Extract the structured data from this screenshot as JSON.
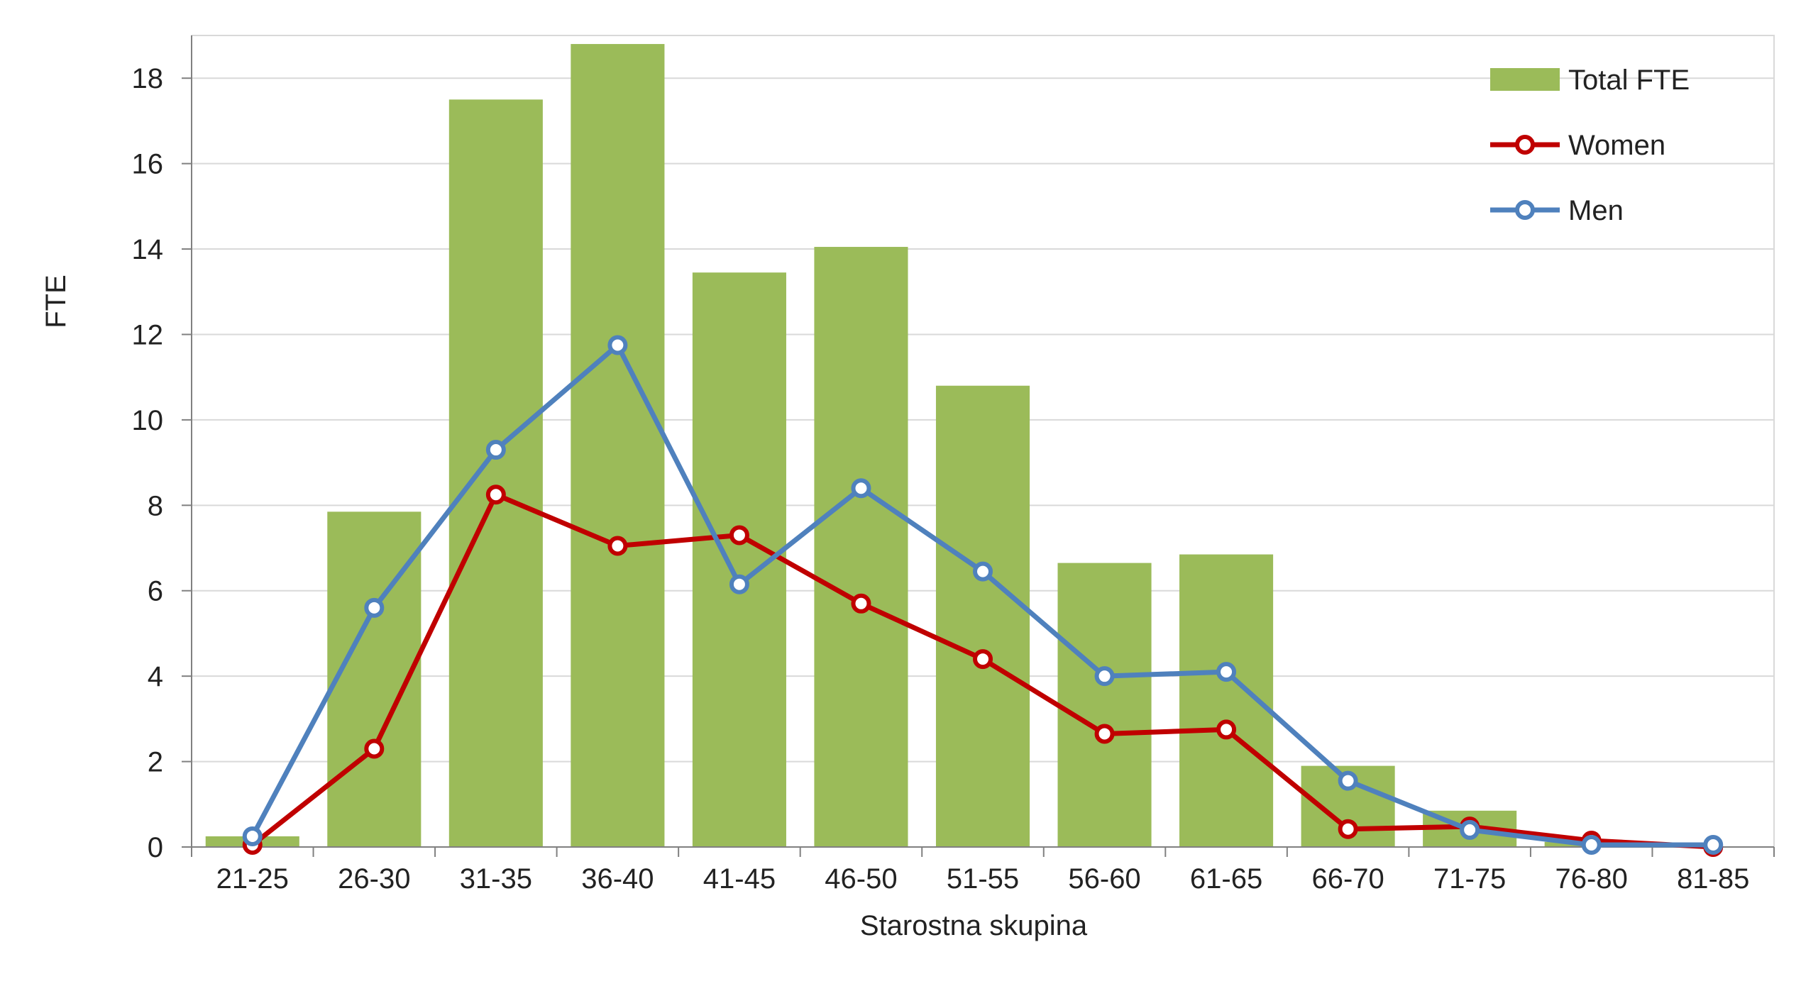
{
  "chart_data": {
    "type": "bar",
    "xlabel": "Starostna skupina",
    "ylabel": "FTE",
    "ylim": [
      0,
      19
    ],
    "yticks": [
      0,
      2,
      4,
      6,
      8,
      10,
      12,
      14,
      16,
      18
    ],
    "grid": true,
    "legend_position": "top-right",
    "categories": [
      "21-25",
      "26-30",
      "31-35",
      "36-40",
      "41-45",
      "46-50",
      "51-55",
      "56-60",
      "61-65",
      "66-70",
      "71-75",
      "76-80",
      "81-85"
    ],
    "series": [
      {
        "name": "Total FTE",
        "kind": "bar",
        "color": "#9bbb59",
        "values": [
          0.25,
          7.85,
          17.5,
          18.8,
          13.45,
          14.05,
          10.8,
          6.65,
          6.85,
          1.9,
          0.85,
          0.12,
          0.0
        ]
      },
      {
        "name": "Women",
        "kind": "line",
        "color": "#c00000",
        "values": [
          0.05,
          2.3,
          8.25,
          7.05,
          7.3,
          5.7,
          4.4,
          2.65,
          2.75,
          0.42,
          0.48,
          0.15,
          0.0
        ]
      },
      {
        "name": "Men",
        "kind": "line",
        "color": "#4f81bd",
        "values": [
          0.25,
          5.6,
          9.3,
          11.75,
          6.15,
          8.4,
          6.45,
          4.0,
          4.1,
          1.55,
          0.4,
          0.05,
          0.05
        ]
      }
    ]
  }
}
